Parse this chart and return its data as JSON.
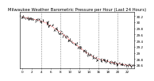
{
  "title": "Milwaukee Weather Barometric Pressure per Hour (Last 24 Hours)",
  "background_color": "#ffffff",
  "plot_bg_color": "#ffffff",
  "line_color": "#ff0000",
  "tick_color": "#000000",
  "grid_color": "#888888",
  "hours": [
    0,
    1,
    2,
    3,
    4,
    5,
    6,
    7,
    8,
    9,
    10,
    11,
    12,
    13,
    14,
    15,
    16,
    17,
    18,
    19,
    20,
    21,
    22,
    23
  ],
  "pressure": [
    30.18,
    30.14,
    30.11,
    30.08,
    30.04,
    29.98,
    29.88,
    29.78,
    29.68,
    29.55,
    29.42,
    29.3,
    29.18,
    29.06,
    28.95,
    28.87,
    28.8,
    28.76,
    28.72,
    28.68,
    28.65,
    28.62,
    28.6,
    28.58
  ],
  "ylim_min": 28.5,
  "ylim_max": 30.35,
  "ytick_values": [
    28.6,
    28.8,
    29.0,
    29.2,
    29.4,
    29.6,
    29.8,
    30.0,
    30.2
  ],
  "ytick_labels": [
    "28.6",
    "28.8",
    "29",
    "29.2",
    "29.4",
    "29.6",
    "29.8",
    "30",
    "30.2"
  ],
  "xtick_values": [
    0,
    2,
    4,
    6,
    8,
    10,
    12,
    14,
    16,
    18,
    20,
    22
  ],
  "xtick_labels": [
    "0",
    "2",
    "4",
    "6",
    "8",
    "10",
    "12",
    "14",
    "16",
    "18",
    "20",
    "22"
  ],
  "title_fontsize": 3.8,
  "tick_fontsize": 3.0,
  "line_width": 0.6,
  "marker_size": 2.0,
  "vgrid_positions": [
    4,
    8,
    12,
    16,
    20
  ]
}
